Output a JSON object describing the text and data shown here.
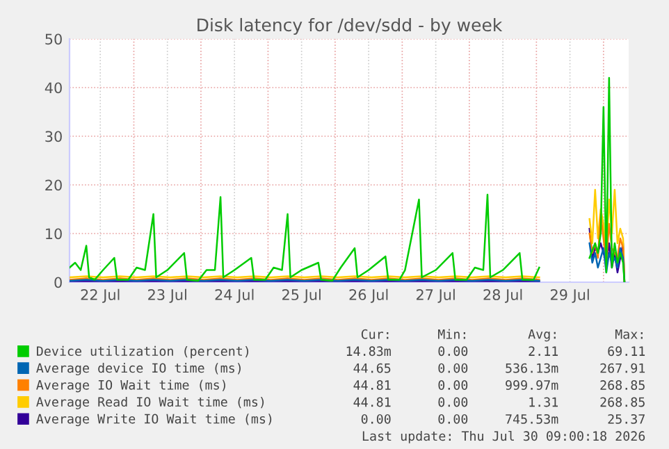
{
  "chart_data": {
    "type": "line",
    "title": "Disk latency for /dev/sdd - by week",
    "xlim": [
      "2026-07-22T01:00",
      "2026-07-30T09:00"
    ],
    "xticks": [
      {
        "value": "2026-07-23T00:00",
        "label": null
      },
      {
        "value": "2026-07-24T00:00",
        "label": null
      },
      {
        "value": "2026-07-25T00:00",
        "label": null
      },
      {
        "value": "2026-07-26T00:00",
        "label": null
      },
      {
        "value": "2026-07-27T00:00",
        "label": null
      },
      {
        "value": "2026-07-28T00:00",
        "label": null
      },
      {
        "value": "2026-07-29T00:00",
        "label": null
      },
      {
        "value": "2026-07-30T00:00",
        "label": null
      },
      {
        "value": "2026-07-22T12:00",
        "label": "22 Jul"
      },
      {
        "value": "2026-07-23T12:00",
        "label": "23 Jul"
      },
      {
        "value": "2026-07-24T12:00",
        "label": "24 Jul"
      },
      {
        "value": "2026-07-25T12:00",
        "label": "25 Jul"
      },
      {
        "value": "2026-07-26T12:00",
        "label": "26 Jul"
      },
      {
        "value": "2026-07-27T12:00",
        "label": "27 Jul"
      },
      {
        "value": "2026-07-28T12:00",
        "label": "28 Jul"
      },
      {
        "value": "2026-07-29T12:00",
        "label": "29 Jul"
      }
    ],
    "ylim": [
      0,
      50
    ],
    "yticks": [
      0,
      10,
      20,
      30,
      40,
      50
    ],
    "grid": true,
    "legend": "bottom",
    "marker": "none",
    "line_style": "solid",
    "x": [
      "2026-07-22T01:00",
      "2026-07-22T07:00",
      "2026-07-22T13:00",
      "2026-07-22T19:00",
      "2026-07-23T01:00",
      "2026-07-23T07:00",
      "2026-07-23T13:00",
      "2026-07-23T19:00",
      "2026-07-24T01:00",
      "2026-07-24T07:00",
      "2026-07-24T13:00",
      "2026-07-24T19:00",
      "2026-07-25T01:00",
      "2026-07-25T07:00",
      "2026-07-25T13:00",
      "2026-07-25T19:00",
      "2026-07-26T01:00",
      "2026-07-26T07:00",
      "2026-07-26T13:00",
      "2026-07-26T19:00",
      "2026-07-27T01:00",
      "2026-07-27T07:00",
      "2026-07-27T13:00",
      "2026-07-27T19:00",
      "2026-07-28T01:00",
      "2026-07-28T07:00",
      "2026-07-28T13:00",
      "2026-07-28T19:00",
      "2026-07-29T01:00",
      "2026-07-29T06:00",
      "2026-07-29T19:00",
      "2026-07-29T20:00",
      "2026-07-29T21:00",
      "2026-07-29T22:00",
      "2026-07-29T23:00",
      "2026-07-30T00:00",
      "2026-07-30T01:00",
      "2026-07-30T02:00",
      "2026-07-30T03:00",
      "2026-07-30T04:00",
      "2026-07-30T05:00",
      "2026-07-30T06:00",
      "2026-07-30T07:00",
      "2026-07-30T07:30"
    ],
    "series": [
      {
        "name": "Device utilization (percent)",
        "color": "#00cc00",
        "x": [
          "2026-07-22T01:00",
          "2026-07-22T03:00",
          "2026-07-22T05:00",
          "2026-07-22T07:00",
          "2026-07-22T08:00",
          "2026-07-22T10:00",
          "2026-07-22T13:00",
          "2026-07-22T17:00",
          "2026-07-22T18:00",
          "2026-07-22T22:00",
          "2026-07-23T01:00",
          "2026-07-23T04:00",
          "2026-07-23T07:00",
          "2026-07-23T08:00",
          "2026-07-23T12:00",
          "2026-07-23T18:00",
          "2026-07-23T19:00",
          "2026-07-23T23:00",
          "2026-07-24T02:00",
          "2026-07-24T05:00",
          "2026-07-24T07:00",
          "2026-07-24T08:00",
          "2026-07-24T12:00",
          "2026-07-24T18:00",
          "2026-07-24T19:00",
          "2026-07-24T23:00",
          "2026-07-25T02:00",
          "2026-07-25T05:00",
          "2026-07-25T07:00",
          "2026-07-25T08:00",
          "2026-07-25T12:00",
          "2026-07-25T18:00",
          "2026-07-25T19:00",
          "2026-07-25T23:00",
          "2026-07-26T02:00",
          "2026-07-26T07:00",
          "2026-07-26T08:00",
          "2026-07-26T12:00",
          "2026-07-26T18:00",
          "2026-07-26T19:00",
          "2026-07-26T23:00",
          "2026-07-27T01:00",
          "2026-07-27T06:00",
          "2026-07-27T07:00",
          "2026-07-27T12:00",
          "2026-07-27T18:00",
          "2026-07-27T19:00",
          "2026-07-27T23:00",
          "2026-07-28T02:00",
          "2026-07-28T05:00",
          "2026-07-28T06:30",
          "2026-07-28T07:30",
          "2026-07-28T12:00",
          "2026-07-28T18:00",
          "2026-07-28T19:00",
          "2026-07-28T23:00",
          "2026-07-29T01:00",
          "2026-07-29T02:00",
          "2026-07-29T19:00",
          "2026-07-29T21:00",
          "2026-07-29T22:00",
          "2026-07-29T23:00",
          "2026-07-30T00:00",
          "2026-07-30T01:00",
          "2026-07-30T02:00",
          "2026-07-30T03:00",
          "2026-07-30T04:00",
          "2026-07-30T05:00",
          "2026-07-30T06:00",
          "2026-07-30T07:00",
          "2026-07-30T07:30"
        ],
        "values": [
          3,
          4,
          2.5,
          7.5,
          1,
          0.5,
          2.5,
          5,
          0.5,
          0.5,
          3,
          2.5,
          14,
          1,
          2.5,
          6,
          0.5,
          0.3,
          2.5,
          2.5,
          17.5,
          1,
          2.5,
          5,
          0.5,
          0.5,
          3,
          2.5,
          14,
          1,
          2.5,
          4,
          0.5,
          0.3,
          3,
          7,
          1,
          2.5,
          5.3,
          0.5,
          0.5,
          2.5,
          17,
          1,
          2.5,
          6,
          0.5,
          0.5,
          3,
          2.5,
          18,
          1,
          2.5,
          6,
          0.5,
          0.5,
          3,
          null,
          5,
          8,
          6,
          10,
          36,
          2,
          42,
          3,
          8,
          4,
          6,
          4,
          0
        ]
      },
      {
        "name": "Average device IO time (ms)",
        "color": "#0066b3",
        "values": [
          0.3,
          0.5,
          0.3,
          0.5,
          0.3,
          0.5,
          0.3,
          0.5,
          0.3,
          0.5,
          0.3,
          0.5,
          0.3,
          0.5,
          0.3,
          0.5,
          0.3,
          0.5,
          0.3,
          0.5,
          0.3,
          0.5,
          0.3,
          0.5,
          0.3,
          0.5,
          0.3,
          0.5,
          0.3,
          null,
          8,
          4,
          6,
          3,
          5,
          7,
          2,
          6,
          4,
          5,
          3,
          7,
          5,
          0
        ]
      },
      {
        "name": "Average IO Wait time (ms)",
        "color": "#ff8000",
        "values": [
          0.5,
          0.8,
          0.5,
          0.8,
          0.5,
          0.8,
          0.5,
          0.8,
          0.5,
          0.8,
          0.5,
          0.8,
          0.5,
          0.8,
          0.5,
          0.8,
          0.5,
          0.8,
          0.5,
          0.8,
          0.5,
          0.8,
          0.5,
          0.8,
          0.5,
          0.8,
          0.5,
          0.8,
          0.5,
          null,
          10,
          6,
          8,
          5,
          14,
          9,
          4,
          12,
          7,
          6,
          5,
          9,
          7,
          0
        ]
      },
      {
        "name": "Average Read IO Wait time (ms)",
        "color": "#ffcc00",
        "values": [
          1,
          1.2,
          1,
          1.2,
          1,
          1.2,
          1,
          1.2,
          1,
          1.2,
          1,
          1.2,
          1,
          1.2,
          1,
          1.2,
          1,
          1.2,
          1,
          1.2,
          1,
          1.2,
          1,
          1.2,
          1,
          1.2,
          1,
          1.2,
          1,
          null,
          13,
          8,
          19,
          9,
          15,
          12,
          5,
          17,
          10,
          19,
          8,
          11,
          9,
          0
        ]
      },
      {
        "name": "Average Write IO Wait time (ms)",
        "color": "#330099",
        "values": [
          0.2,
          0.2,
          0.2,
          0.2,
          0.2,
          0.2,
          0.2,
          0.2,
          0.2,
          0.2,
          0.2,
          0.2,
          0.2,
          0.2,
          0.2,
          0.2,
          0.2,
          0.2,
          0.2,
          0.2,
          0.2,
          0.2,
          0.2,
          0.2,
          0.2,
          0.2,
          0.2,
          0.2,
          0.2,
          null,
          11,
          5,
          7,
          6,
          8,
          6,
          4,
          8,
          3,
          6,
          2,
          5,
          8,
          0
        ]
      }
    ],
    "annotations": [
      "Cur:",
      "Min:",
      "Avg:",
      "Max:",
      "14.83m",
      "0.00",
      "2.11",
      "69.11",
      "44.65",
      "0.00",
      "536.13m",
      "267.91",
      "44.81",
      "0.00",
      "999.97m",
      "268.85",
      "44.81",
      "0.00",
      "1.31",
      "268.85",
      "0.00",
      "0.00",
      "745.53m",
      "25.37",
      "Last update: Thu Jul 30 09:00:18 2026"
    ]
  }
}
